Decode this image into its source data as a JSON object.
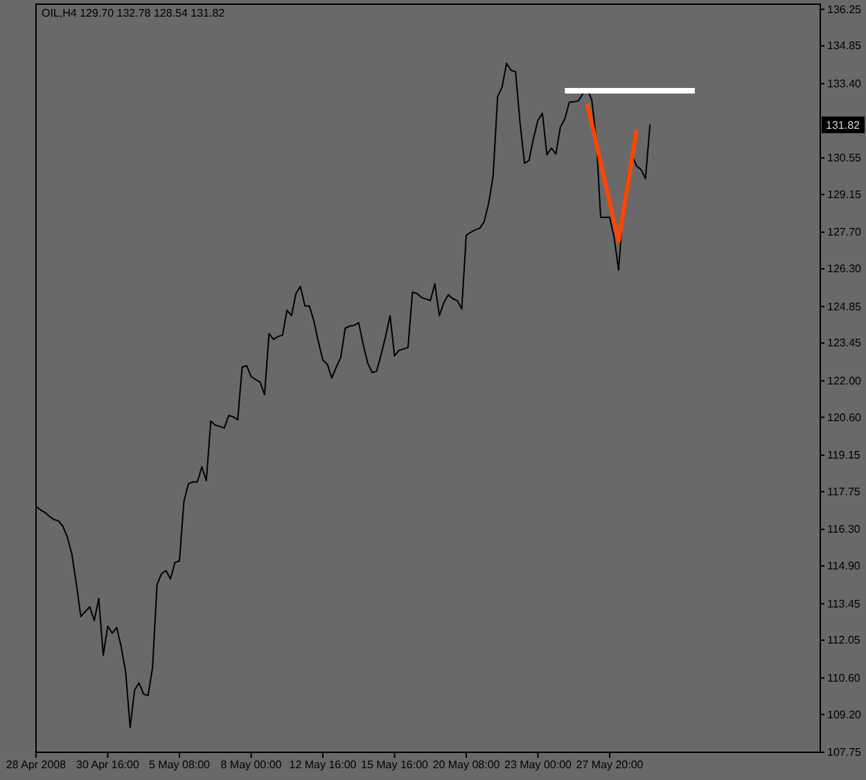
{
  "chart_data": {
    "type": "line",
    "title": "OIL,H4 129.70 132.78 128.54 131.82",
    "categories": [
      "28 Apr 2008",
      null,
      null,
      null,
      null,
      null,
      null,
      null,
      null,
      null,
      null,
      null,
      null,
      null,
      null,
      null,
      "30 Apr 16:00",
      null,
      null,
      null,
      null,
      null,
      null,
      null,
      null,
      null,
      null,
      null,
      null,
      null,
      null,
      null,
      "5 May 08:00",
      null,
      null,
      null,
      null,
      null,
      null,
      null,
      null,
      null,
      null,
      null,
      null,
      null,
      null,
      null,
      "8 May 00:00",
      null,
      null,
      null,
      null,
      null,
      null,
      null,
      null,
      null,
      null,
      null,
      null,
      null,
      null,
      null,
      "12 May 16:00",
      null,
      null,
      null,
      null,
      null,
      null,
      null,
      null,
      null,
      null,
      null,
      null,
      null,
      null,
      null,
      "15 May 16:00",
      null,
      null,
      null,
      null,
      null,
      null,
      null,
      null,
      null,
      null,
      null,
      null,
      null,
      null,
      null,
      "20 May 08:00",
      null,
      null,
      null,
      null,
      null,
      null,
      null,
      null,
      null,
      null,
      null,
      null,
      null,
      null,
      null,
      "23 May 00:00",
      null,
      null,
      null,
      null,
      null,
      null,
      null,
      null,
      null,
      null,
      null,
      null,
      null,
      null,
      null,
      "27 May 20:00",
      null,
      null,
      null,
      null,
      null,
      null,
      null,
      null,
      null,
      null,
      null,
      null,
      null,
      null,
      null,
      null,
      null,
      null,
      null,
      null,
      null,
      null,
      null,
      null,
      null,
      null,
      null,
      null,
      null,
      null,
      null,
      null,
      null,
      null,
      null,
      null,
      null,
      null,
      null,
      null,
      null,
      null,
      null,
      null,
      null,
      null,
      null
    ],
    "ylim": [
      107.75,
      136.45
    ],
    "yticks": [
      136.25,
      134.85,
      {
        "value": 133.4,
        "label": "133.40"
      },
      130.55,
      129.15,
      {
        "value": 127.7,
        "label": "127.70"
      },
      {
        "value": 126.3,
        "label": "126.30"
      },
      124.85,
      123.45,
      {
        "value": 122,
        "label": "122.00"
      },
      {
        "value": 120.6,
        "label": "120.60"
      },
      119.15,
      117.75,
      {
        "value": 116.3,
        "label": "116.30"
      },
      {
        "value": 114.9,
        "label": "114.90"
      },
      113.45,
      112.05,
      {
        "value": 110.6,
        "label": "110.60"
      },
      {
        "value": 109.2,
        "label": "109.20"
      },
      107.75
    ],
    "annotations": [
      {
        "text": "131.82",
        "y": 131.82
      }
    ],
    "series": [
      {
        "color": "#000000",
        "values": [
          117.18,
          117.05,
          116.95,
          116.8,
          116.68,
          116.63,
          116.42,
          116.0,
          115.35,
          114.2,
          112.96,
          113.15,
          113.33,
          112.8,
          113.65,
          111.47,
          112.59,
          112.32,
          112.54,
          111.8,
          110.83,
          108.71,
          110.14,
          110.41,
          109.98,
          109.93,
          110.99,
          114.18,
          114.6,
          114.72,
          114.4,
          115.03,
          115.09,
          117.37,
          118.05,
          118.12,
          118.12,
          118.7,
          118.17,
          120.46,
          120.3,
          120.25,
          120.19,
          120.67,
          120.62,
          120.51,
          122.53,
          122.58,
          122.16,
          122.05,
          121.95,
          121.47,
          123.81,
          123.59,
          123.7,
          123.75,
          124.71,
          124.5,
          125.35,
          125.62,
          124.87,
          124.87,
          124.29,
          123.5,
          122.8,
          122.64,
          122.11,
          122.53,
          122.9,
          124.02,
          124.1,
          124.13,
          124.23,
          123.4,
          122.69,
          122.32,
          122.37,
          123.0,
          123.7,
          124.5,
          122.96,
          123.17,
          123.22,
          123.28,
          125.4,
          125.35,
          125.2,
          125.14,
          125.08,
          125.72,
          124.5,
          125.0,
          125.3,
          125.15,
          125.08,
          124.76,
          127.58,
          127.7,
          127.79,
          127.85,
          128.11,
          128.8,
          129.87,
          132.9,
          133.27,
          134.18,
          133.91,
          133.86,
          131.9,
          130.35,
          130.45,
          131.3,
          132.0,
          132.26,
          130.67,
          130.93,
          130.7,
          131.73,
          132.05,
          132.69,
          132.7,
          132.74,
          133.01,
          133.17,
          132.79,
          131.3,
          128.27,
          128.27,
          128.27,
          127.5,
          126.25,
          128.6,
          129.87,
          130.67,
          130.24,
          130.11,
          129.76,
          131.82,
          null,
          null,
          null,
          null,
          null,
          null,
          null,
          null,
          null,
          null,
          null,
          null,
          null,
          null,
          null,
          null,
          null,
          null,
          null,
          null,
          null,
          null,
          null,
          null,
          null,
          null,
          null,
          null,
          null,
          null,
          null,
          null,
          null,
          null,
          null,
          null,
          null,
          null
        ]
      },
      {
        "color": "#ffffff",
        "values": [
          null,
          null,
          null,
          null,
          null,
          null,
          null,
          null,
          null,
          null,
          null,
          null,
          null,
          null,
          null,
          null,
          null,
          null,
          null,
          null,
          null,
          null,
          null,
          null,
          null,
          null,
          null,
          null,
          null,
          null,
          null,
          null,
          null,
          null,
          null,
          null,
          null,
          null,
          null,
          null,
          null,
          null,
          null,
          null,
          null,
          null,
          null,
          null,
          null,
          null,
          null,
          null,
          null,
          null,
          null,
          null,
          null,
          null,
          null,
          null,
          null,
          null,
          null,
          null,
          null,
          null,
          null,
          null,
          null,
          null,
          null,
          null,
          null,
          null,
          null,
          null,
          null,
          null,
          null,
          null,
          null,
          null,
          null,
          null,
          null,
          null,
          null,
          null,
          null,
          null,
          null,
          null,
          null,
          null,
          null,
          null,
          null,
          null,
          null,
          null,
          null,
          null,
          null,
          null,
          null,
          null,
          null,
          null,
          null,
          null,
          null,
          null,
          null,
          null,
          null,
          null,
          null,
          null,
          133.13,
          133.13,
          133.13,
          133.13,
          133.13,
          133.13,
          133.13,
          133.13,
          133.13,
          133.13,
          133.13,
          133.13,
          133.13,
          133.13,
          133.13,
          133.13,
          133.13,
          133.13,
          133.13,
          133.13,
          133.13,
          133.13,
          133.13,
          133.13,
          133.13,
          133.13,
          133.13,
          133.13,
          133.13,
          133.13,
          null,
          null,
          null,
          null,
          null,
          null,
          null,
          null,
          null,
          null,
          null,
          null,
          null,
          null,
          null,
          null,
          null,
          null,
          null,
          null,
          null,
          null,
          null,
          null,
          null,
          null,
          null,
          null
        ]
      },
      {
        "color": "#ff4500",
        "values": [
          null,
          null,
          null,
          null,
          null,
          null,
          null,
          null,
          null,
          null,
          null,
          null,
          null,
          null,
          null,
          null,
          null,
          null,
          null,
          null,
          null,
          null,
          null,
          null,
          null,
          null,
          null,
          null,
          null,
          null,
          null,
          null,
          null,
          null,
          null,
          null,
          null,
          null,
          null,
          null,
          null,
          null,
          null,
          null,
          null,
          null,
          null,
          null,
          null,
          null,
          null,
          null,
          null,
          null,
          null,
          null,
          null,
          null,
          null,
          null,
          null,
          null,
          null,
          null,
          null,
          null,
          null,
          null,
          null,
          null,
          null,
          null,
          null,
          null,
          null,
          null,
          null,
          null,
          null,
          null,
          null,
          null,
          null,
          null,
          null,
          null,
          null,
          null,
          null,
          null,
          null,
          null,
          null,
          null,
          null,
          null,
          null,
          null,
          null,
          null,
          null,
          null,
          null,
          null,
          null,
          null,
          null,
          null,
          null,
          null,
          null,
          null,
          null,
          null,
          null,
          null,
          null,
          null,
          null,
          null,
          null,
          null,
          null,
          132.63,
          131.88,
          131.13,
          130.38,
          129.62,
          128.87,
          128.12,
          127.37,
          128.43,
          129.5,
          130.56,
          131.62,
          null,
          null,
          null,
          null,
          null,
          null,
          null,
          null,
          null,
          null,
          null,
          null,
          null,
          null,
          null,
          null,
          null,
          null,
          null,
          null,
          null,
          null,
          null,
          null,
          null,
          null,
          null,
          null,
          null,
          null,
          null,
          null,
          null,
          null,
          null,
          null,
          null,
          null,
          null,
          null,
          null
        ]
      }
    ]
  }
}
